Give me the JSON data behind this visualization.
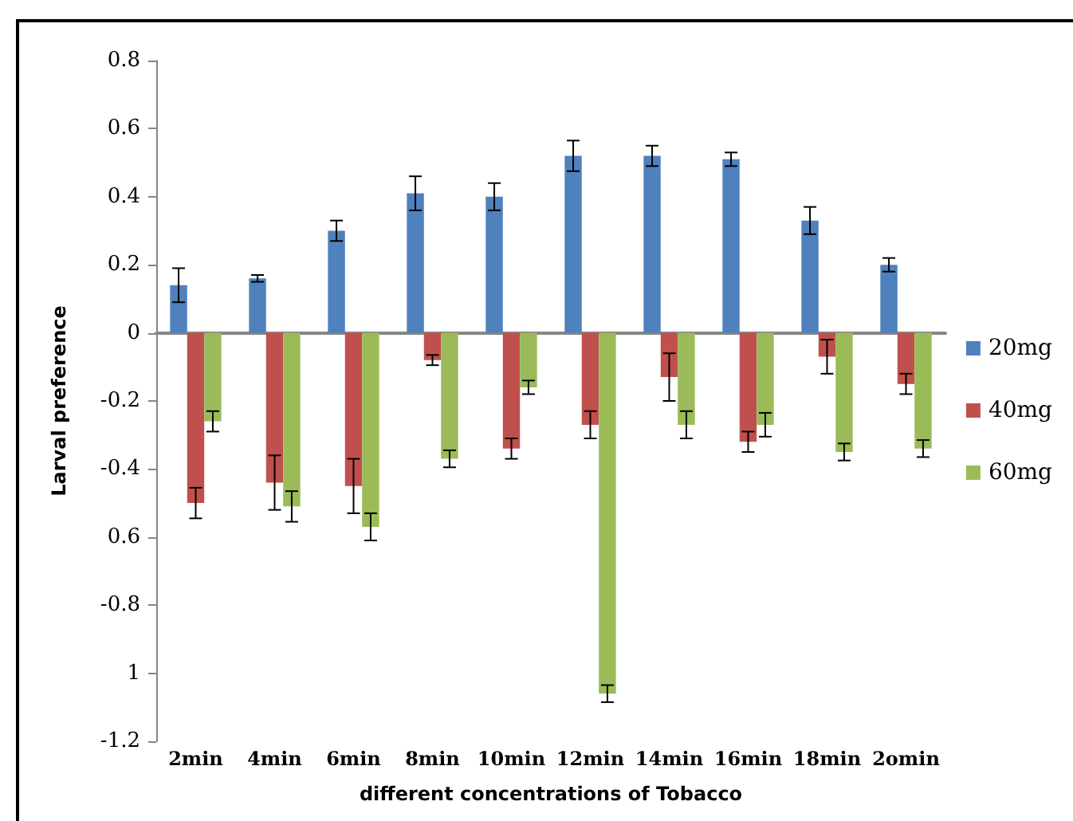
{
  "chart_data": {
    "type": "bar",
    "xlabel": "different concentrations of Tobacco",
    "ylabel": "Larval preference",
    "categories": [
      "2min",
      "4min",
      "6min",
      "8min",
      "10min",
      "12min",
      "14min",
      "16min",
      "18min",
      "2omin"
    ],
    "series": [
      {
        "name": "20mg",
        "color": "#4f81bd",
        "values": [
          0.14,
          0.16,
          0.3,
          0.41,
          0.4,
          0.52,
          0.52,
          0.51,
          0.33,
          0.2
        ],
        "errors": [
          0.05,
          0.01,
          0.03,
          0.05,
          0.04,
          0.045,
          0.03,
          0.02,
          0.04,
          0.02
        ]
      },
      {
        "name": "40mg",
        "color": "#c0504d",
        "values": [
          -0.5,
          -0.44,
          -0.45,
          -0.08,
          -0.34,
          -0.27,
          -0.13,
          -0.32,
          -0.07,
          -0.15
        ],
        "errors": [
          0.045,
          0.08,
          0.08,
          0.015,
          0.03,
          0.04,
          0.07,
          0.03,
          0.05,
          0.03
        ]
      },
      {
        "name": "60mg",
        "color": "#9bbb59",
        "values": [
          -0.26,
          -0.51,
          -0.57,
          -0.37,
          -0.16,
          -1.06,
          -0.27,
          -0.27,
          -0.35,
          -0.34
        ],
        "errors": [
          0.03,
          0.045,
          0.04,
          0.025,
          0.02,
          0.025,
          0.04,
          0.035,
          0.025,
          0.025
        ]
      }
    ],
    "ylim": [
      -1.2,
      0.8
    ],
    "yticks": [
      0.8,
      0.6,
      0.4,
      0.2,
      0,
      -0.2,
      -0.4,
      {
        "value": -0.6,
        "label": "0.6"
      },
      -0.8,
      {
        "value": -1,
        "label": "1"
      },
      -1.2
    ],
    "legend": "right"
  }
}
